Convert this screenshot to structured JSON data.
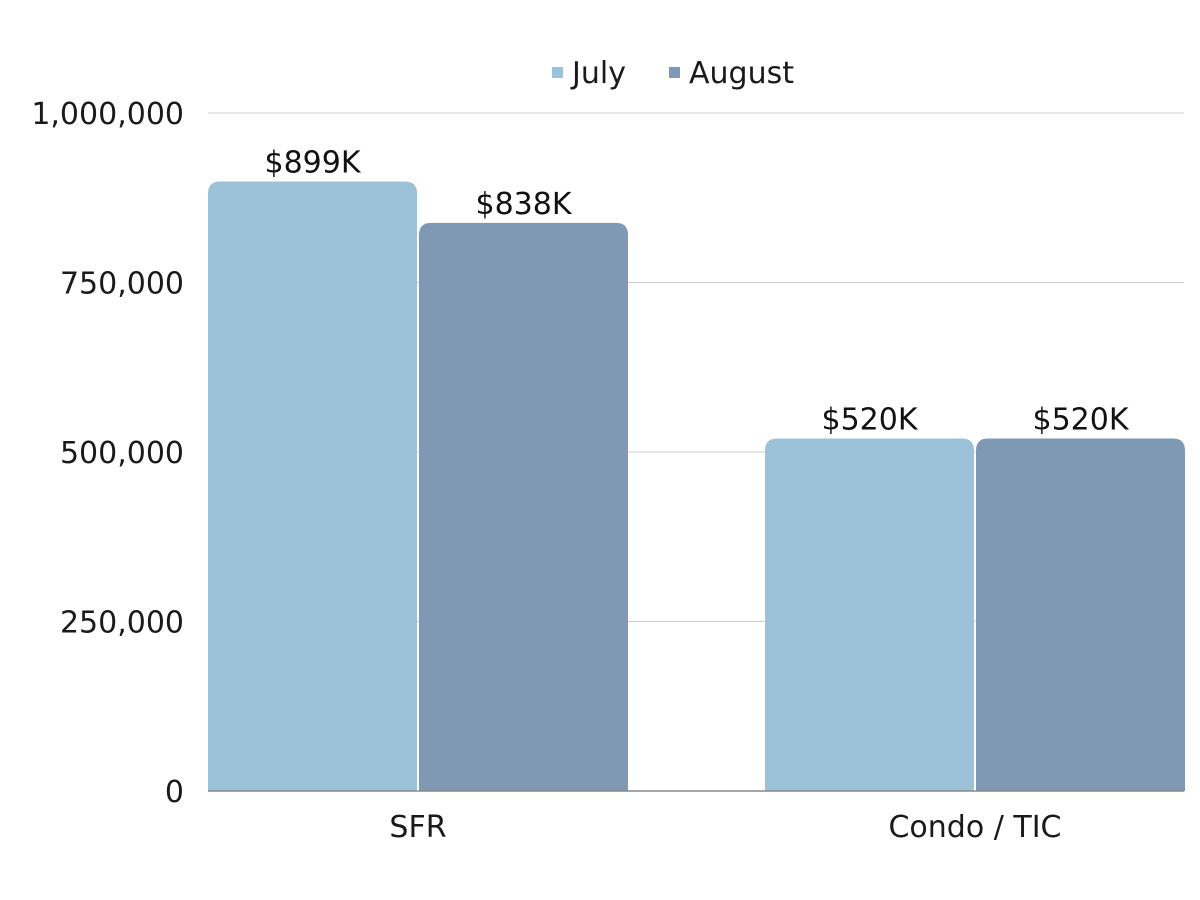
{
  "chart_data": {
    "type": "bar",
    "categories": [
      "SFR",
      "Condo / TIC"
    ],
    "series": [
      {
        "name": "July",
        "values": [
          899000,
          520000
        ],
        "labels": [
          "$899K",
          "$520K"
        ],
        "color": "#9bc2d8"
      },
      {
        "name": "August",
        "values": [
          838000,
          520000
        ],
        "labels": [
          "$838K",
          "$520K"
        ],
        "color": "#7f98b4"
      }
    ],
    "ylim": [
      0,
      1000000
    ],
    "yticks": [
      0,
      250000,
      500000,
      750000,
      1000000
    ],
    "ytick_labels": [
      "0",
      "250,000",
      "500,000",
      "750,000",
      "1,000,000"
    ],
    "legend_position": "top-center",
    "grid": true,
    "gridline_color": "#d0d0d0",
    "axis_color": "#888888"
  }
}
